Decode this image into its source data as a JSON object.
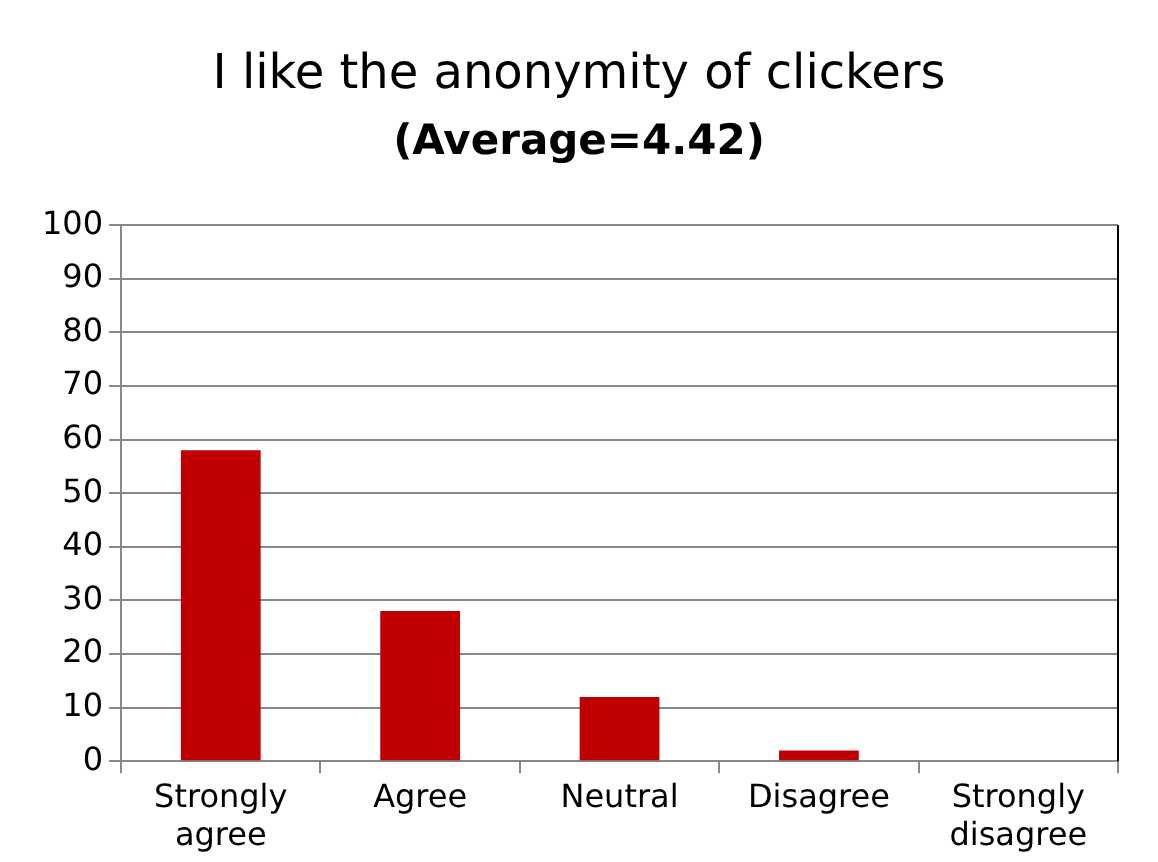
{
  "chart_data": {
    "type": "bar",
    "title": "I like the anonymity of clickers",
    "subtitle": "(Average=4.42)",
    "categories": [
      "Strongly agree",
      "Agree",
      "Neutral",
      "Disagree",
      "Strongly disagree"
    ],
    "values": [
      58,
      28,
      12,
      2,
      0
    ],
    "color": "#c00000",
    "ylim": [
      0,
      100
    ],
    "yticks": [
      0,
      10,
      20,
      30,
      40,
      50,
      60,
      70,
      80,
      90,
      100
    ],
    "grid": "y",
    "legend": false
  }
}
